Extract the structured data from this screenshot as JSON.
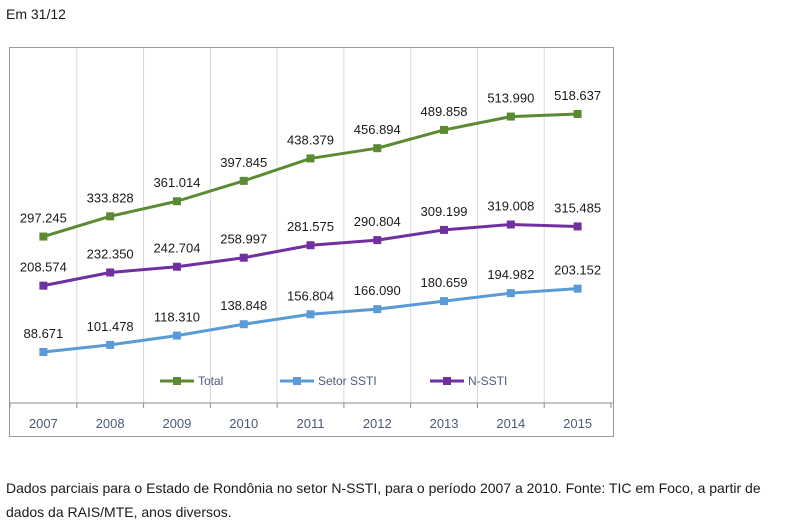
{
  "header": {
    "label": "Em 31/12"
  },
  "chart_data": {
    "type": "line",
    "title": "",
    "xlabel": "",
    "ylabel": "",
    "categories": [
      "2007",
      "2008",
      "2009",
      "2010",
      "2011",
      "2012",
      "2013",
      "2014",
      "2015"
    ],
    "series": [
      {
        "name": "Total",
        "color": "#5b8a32",
        "values": [
          297245,
          333828,
          361014,
          397845,
          438379,
          456894,
          489858,
          513990,
          518637
        ],
        "labels": [
          "297.245",
          "333.828",
          "361.014",
          "397.845",
          "438.379",
          "456.894",
          "489.858",
          "513.990",
          "518.637"
        ]
      },
      {
        "name": "Setor SSTI",
        "color": "#5b9bd5",
        "values": [
          88671,
          101478,
          118310,
          138848,
          156804,
          166090,
          180659,
          194982,
          203152
        ],
        "labels": [
          "88.671",
          "101.478",
          "118.310",
          "138.848",
          "156.804",
          "166.090",
          "180.659",
          "194.982",
          "203.152"
        ]
      },
      {
        "name": "N-SSTI",
        "color": "#7030a0",
        "values": [
          208574,
          232350,
          242704,
          258997,
          281575,
          290804,
          309199,
          319008,
          315485
        ],
        "labels": [
          "208.574",
          "232.350",
          "242.704",
          "258.997",
          "281.575",
          "290.804",
          "309.199",
          "319.008",
          "315.485"
        ]
      }
    ],
    "grid": "vertical",
    "legend": "bottom-inside",
    "marker": "square"
  },
  "caption": "Dados parciais para o Estado de Rondônia no setor N-SSTI, para o período 2007 a 2010. Fonte: TIC em Foco, a partir de dados da RAIS/MTE, anos diversos."
}
